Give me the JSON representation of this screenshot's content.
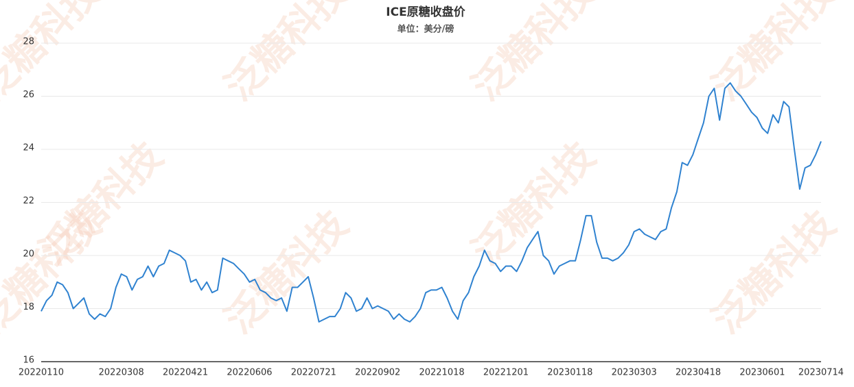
{
  "chart_data": {
    "type": "line",
    "title": "ICE原糖收盘价",
    "subtitle": "单位：美分/磅",
    "watermark": "泛糖科技",
    "categories": [
      "20220110",
      null,
      null,
      null,
      null,
      null,
      null,
      null,
      null,
      null,
      null,
      null,
      null,
      null,
      null,
      "20220308",
      null,
      null,
      null,
      null,
      null,
      null,
      null,
      null,
      null,
      null,
      null,
      "20220421",
      null,
      null,
      null,
      null,
      null,
      null,
      null,
      null,
      null,
      null,
      null,
      "20220606",
      null,
      null,
      null,
      null,
      null,
      null,
      null,
      null,
      null,
      null,
      null,
      "20220721",
      null,
      null,
      null,
      null,
      null,
      null,
      null,
      null,
      null,
      null,
      null,
      "20220902",
      null,
      null,
      null,
      null,
      null,
      null,
      null,
      null,
      null,
      null,
      null,
      "20221018",
      null,
      null,
      null,
      null,
      null,
      null,
      null,
      null,
      null,
      null,
      null,
      "20221201",
      null,
      null,
      null,
      null,
      null,
      null,
      null,
      null,
      null,
      null,
      null,
      "20230118",
      null,
      null,
      null,
      null,
      null,
      null,
      null,
      null,
      null,
      null,
      null,
      "20230303",
      null,
      null,
      null,
      null,
      null,
      null,
      null,
      null,
      null,
      null,
      null,
      "20230418",
      null,
      null,
      null,
      null,
      null,
      null,
      null,
      null,
      null,
      null,
      null,
      "20230601",
      null,
      null,
      null,
      null,
      null,
      null,
      null,
      null,
      null,
      null,
      "20230714"
    ],
    "series": [
      {
        "color": "#2f82d0",
        "values": [
          17.9,
          18.3,
          18.5,
          19.0,
          18.9,
          18.6,
          18.0,
          18.2,
          18.4,
          17.8,
          17.6,
          17.8,
          17.7,
          18.0,
          18.8,
          19.3,
          19.2,
          18.7,
          19.1,
          19.2,
          19.6,
          19.2,
          19.6,
          19.7,
          20.2,
          20.1,
          20.0,
          19.8,
          19.0,
          19.1,
          18.7,
          19.0,
          18.6,
          18.7,
          19.9,
          19.8,
          19.7,
          19.5,
          19.3,
          19.0,
          19.1,
          18.7,
          18.6,
          18.4,
          18.3,
          18.4,
          17.9,
          18.8,
          18.8,
          19.0,
          19.2,
          18.4,
          17.5,
          17.6,
          17.7,
          17.7,
          18.0,
          18.6,
          18.4,
          17.9,
          18.0,
          18.4,
          18.0,
          18.1,
          18.0,
          17.9,
          17.6,
          17.8,
          17.6,
          17.5,
          17.7,
          18.0,
          18.6,
          18.7,
          18.7,
          18.8,
          18.4,
          17.9,
          17.6,
          18.3,
          18.6,
          19.2,
          19.6,
          20.2,
          19.8,
          19.7,
          19.4,
          19.6,
          19.6,
          19.4,
          19.8,
          20.3,
          20.6,
          20.9,
          20.0,
          19.8,
          19.3,
          19.6,
          19.7,
          19.8,
          19.8,
          20.6,
          21.5,
          21.5,
          20.5,
          19.9,
          19.9,
          19.8,
          19.9,
          20.1,
          20.4,
          20.9,
          21.0,
          20.8,
          20.7,
          20.6,
          20.9,
          21.0,
          21.8,
          22.4,
          23.5,
          23.4,
          23.8,
          24.4,
          25.0,
          26.0,
          26.3,
          25.1,
          26.3,
          26.5,
          26.2,
          26.0,
          25.7,
          25.4,
          25.2,
          24.8,
          24.6,
          25.3,
          25.0,
          25.8,
          25.6,
          24.0,
          22.5,
          23.3,
          23.4,
          23.8,
          24.3
        ]
      }
    ],
    "ylim": [
      16,
      28
    ],
    "yticks": [
      16,
      18,
      20,
      22,
      24,
      26,
      28
    ],
    "grid": true
  }
}
